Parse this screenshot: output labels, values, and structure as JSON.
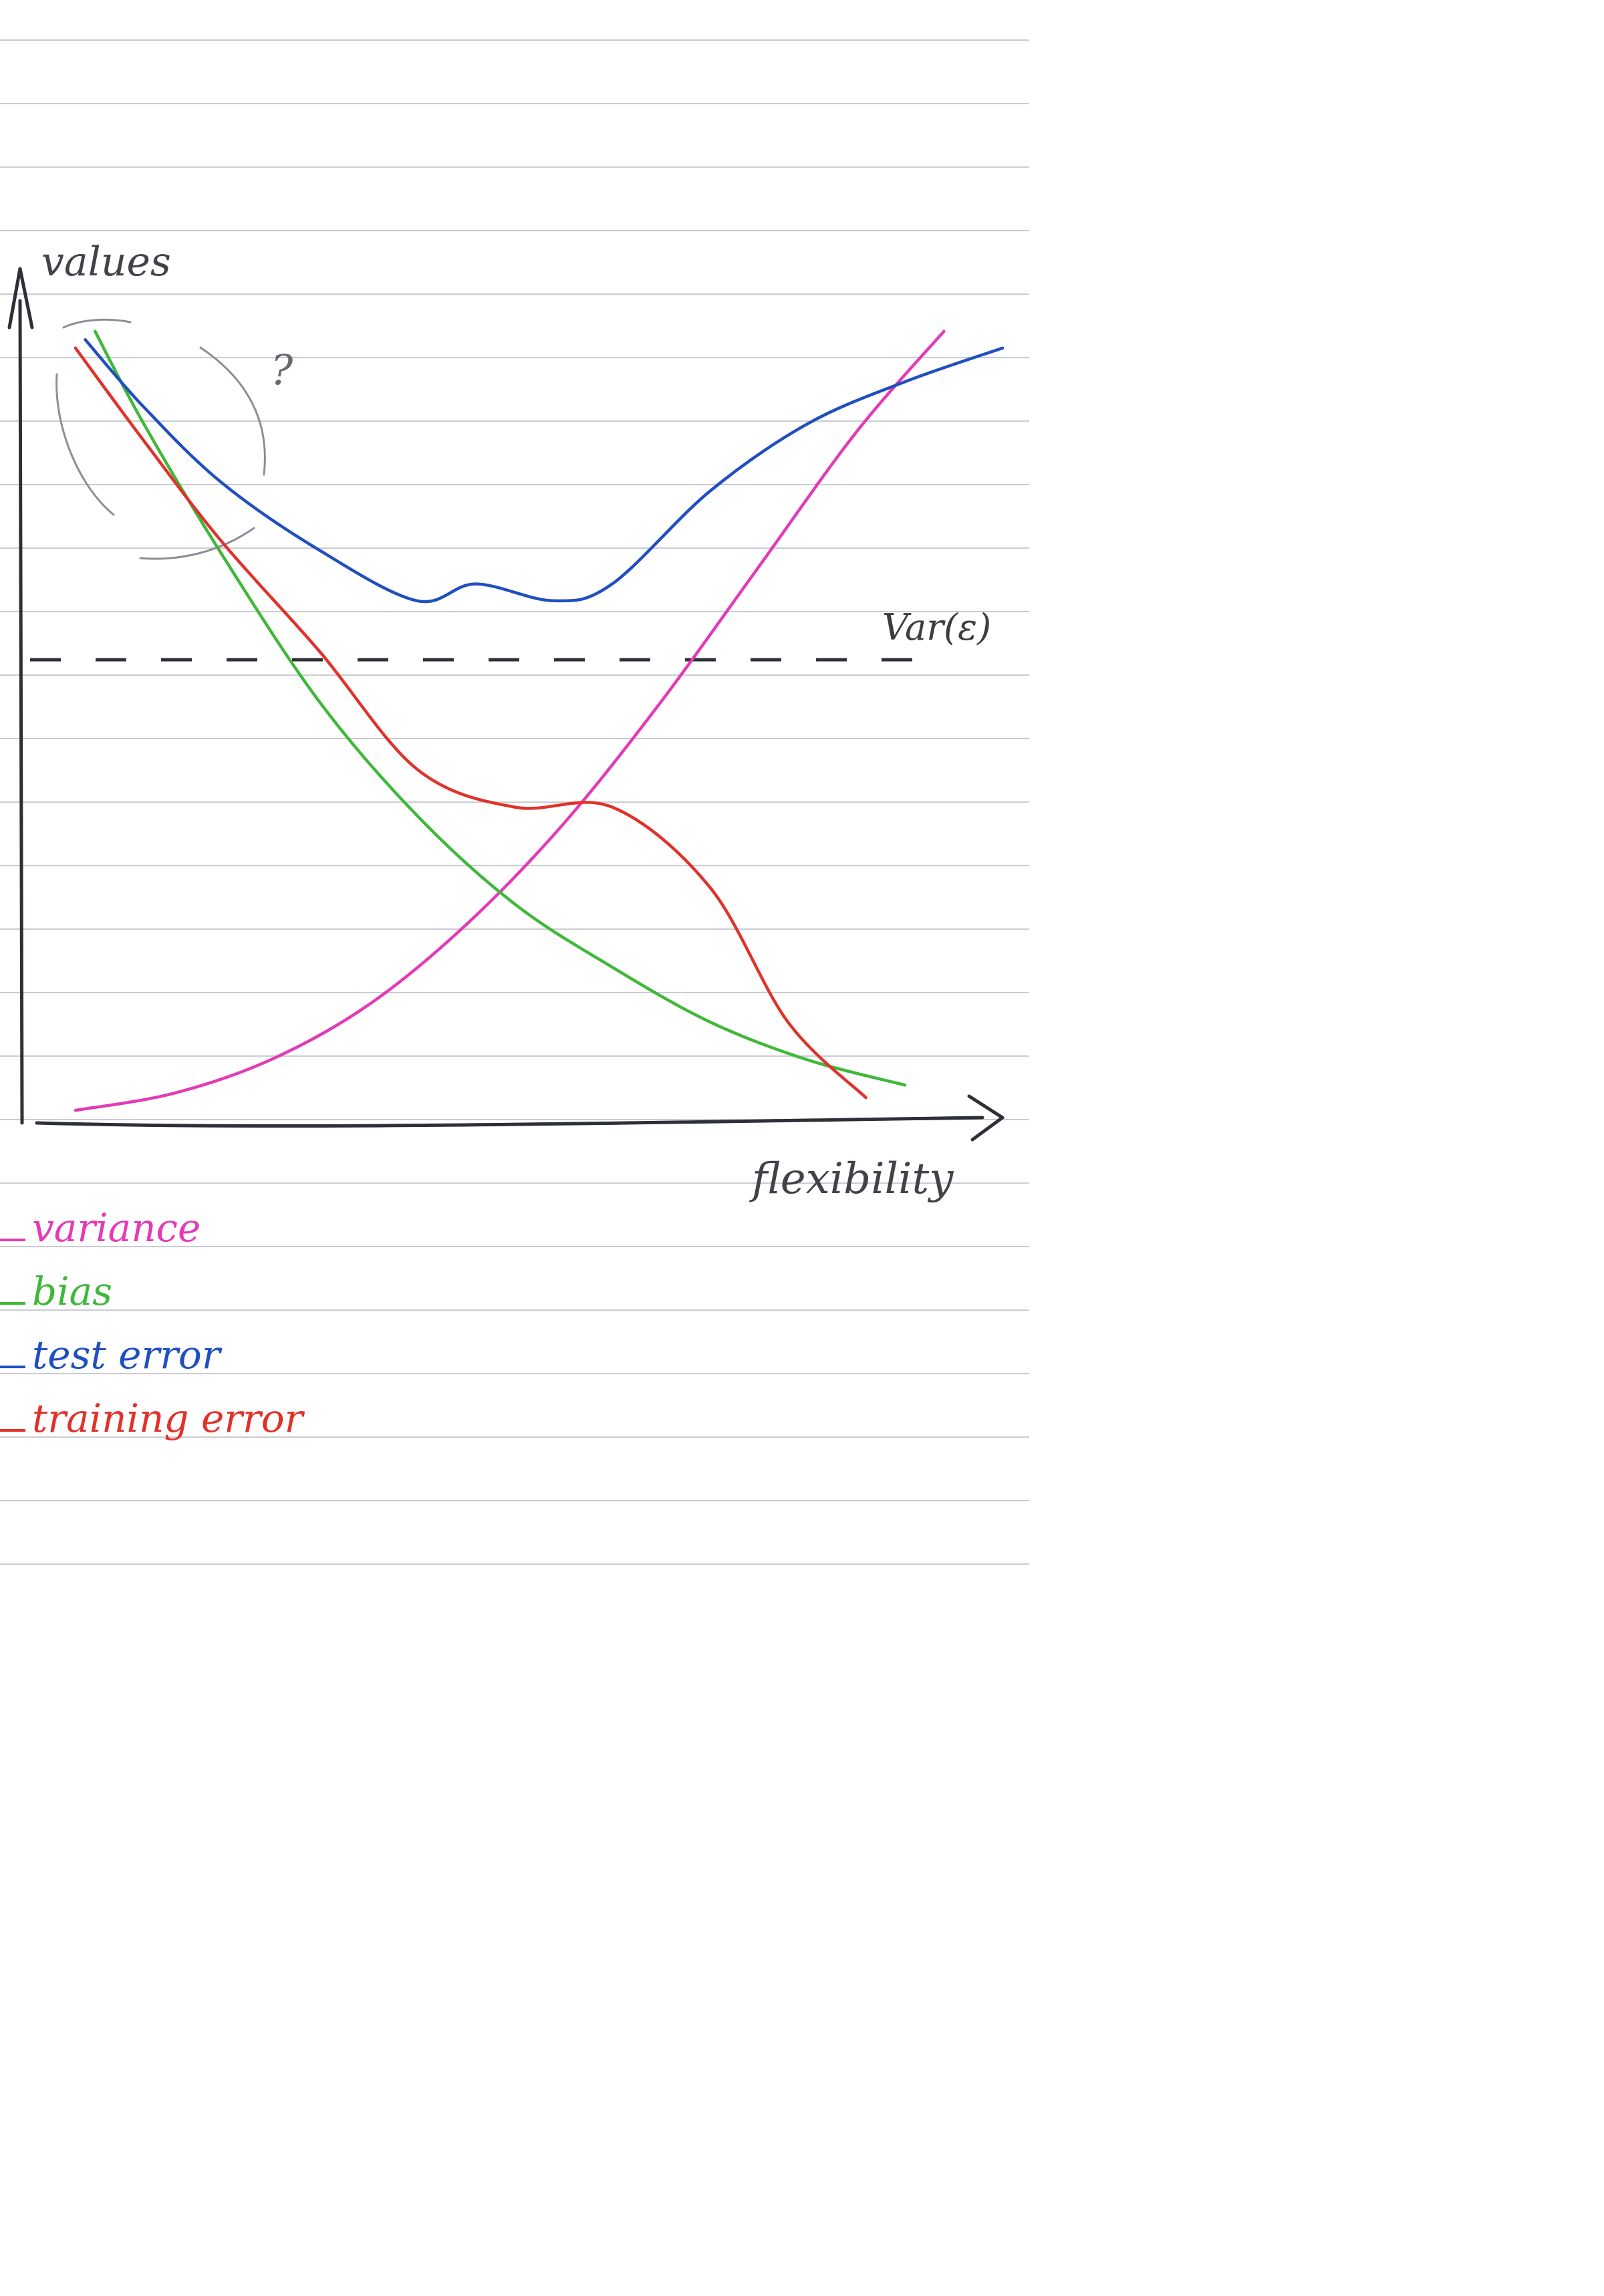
{
  "chart_data": {
    "type": "line",
    "xlabel": "flexibility",
    "ylabel": "values",
    "xlim": [
      0,
      10
    ],
    "ylim": [
      0,
      10
    ],
    "grid": false,
    "legend_position": "bottom-left",
    "reference_line": {
      "label": "Var(ε)",
      "y": 5.5
    },
    "annotations": [
      "?"
    ],
    "series": [
      {
        "name": "variance",
        "color": "#e43ab7",
        "x": [
          0.5,
          1.5,
          2.5,
          3.5,
          4.5,
          5.5,
          6.5,
          7.5,
          8.5,
          9.4
        ],
        "y": [
          0.15,
          0.35,
          0.75,
          1.4,
          2.35,
          3.55,
          5.0,
          6.6,
          8.2,
          9.4
        ]
      },
      {
        "name": "bias",
        "color": "#3fb83a",
        "x": [
          0.7,
          1.2,
          2.0,
          3.0,
          4.0,
          5.0,
          6.0,
          7.0,
          8.0,
          9.0
        ],
        "y": [
          9.4,
          8.3,
          6.75,
          5.0,
          3.65,
          2.6,
          1.85,
          1.2,
          0.75,
          0.45
        ]
      },
      {
        "name": "test error",
        "color": "#1f4fc0",
        "x": [
          0.6,
          1.2,
          2.0,
          3.0,
          4.0,
          4.6,
          5.4,
          6.0,
          7.0,
          8.0,
          9.0,
          10.0
        ],
        "y": [
          9.3,
          8.5,
          7.6,
          6.8,
          6.2,
          6.4,
          6.2,
          6.4,
          7.5,
          8.3,
          8.8,
          9.2
        ]
      },
      {
        "name": "training error",
        "color": "#e0322a",
        "x": [
          0.5,
          1.2,
          2.0,
          3.0,
          4.0,
          5.0,
          6.0,
          7.0,
          7.8,
          8.6
        ],
        "y": [
          9.2,
          8.1,
          6.9,
          5.6,
          4.2,
          3.75,
          3.75,
          2.8,
          1.2,
          0.3
        ]
      }
    ]
  }
}
